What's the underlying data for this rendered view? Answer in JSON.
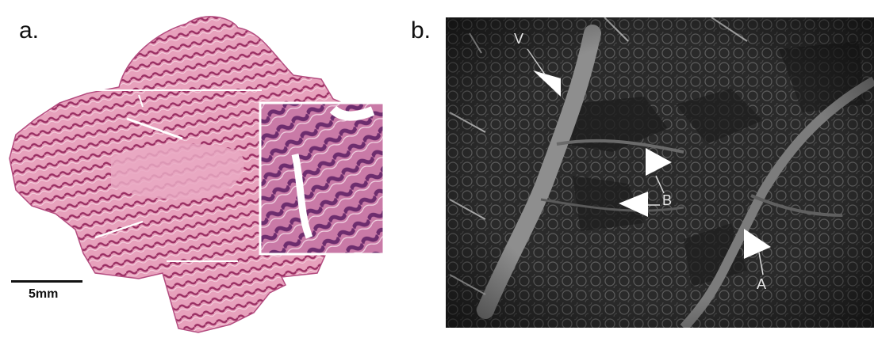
{
  "panels": {
    "a": {
      "label": "a.",
      "scale_bar_text": "5mm"
    },
    "b": {
      "label": "b.",
      "markers": {
        "v": "V",
        "b": "B",
        "a": "A"
      }
    }
  },
  "colors": {
    "stain_light": "#e9a2bd",
    "stain_mid": "#d0709a",
    "stain_dark": "#9a2e63",
    "vessel_gray": "#8e8e8e",
    "background_dark": "#262626"
  }
}
